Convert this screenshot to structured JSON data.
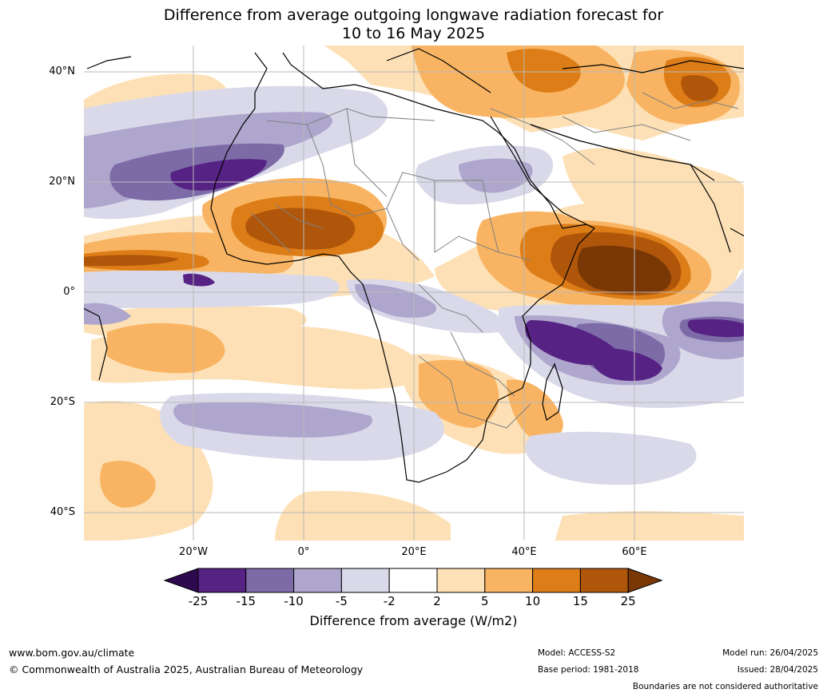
{
  "title": {
    "line1": "Difference from average outgoing longwave radiation forecast for",
    "line2": "10 to 16 May 2025"
  },
  "axes": {
    "lat_labels": [
      "40°N",
      "20°N",
      "0°",
      "20°S",
      "40°S"
    ],
    "lon_labels": [
      "20°W",
      "0°",
      "20°E",
      "40°E",
      "60°E"
    ],
    "lat_values": [
      40,
      20,
      0,
      -20,
      -40
    ],
    "lon_values": [
      -20,
      0,
      20,
      40,
      60
    ],
    "extent": {
      "lon_min": -40,
      "lon_max": 80,
      "lat_min": -45,
      "lat_max": 45
    }
  },
  "colorbar": {
    "labels": [
      "-25",
      "-15",
      "-10",
      "-5",
      "-2",
      "2",
      "5",
      "10",
      "15",
      "25"
    ],
    "colors": [
      "#2d0a4e",
      "#562284",
      "#7d6ba8",
      "#aea6cd",
      "#d9d9ea",
      "#ffffff",
      "#fde0b5",
      "#f8b462",
      "#dd7d17",
      "#b0560b",
      "#7a3706"
    ],
    "title": "Difference from average (W/m2)"
  },
  "colors": {
    "ocean": "#ffffff",
    "grid": "#b9b9b9",
    "coast": "#000000",
    "borders": "#808080"
  },
  "footer": {
    "website": "www.bom.gov.au/climate",
    "copyright": "© Commonwealth of Australia 2025, Australian Bureau of Meteorology",
    "model": "Model: ACCESS-S2",
    "base_period": "Base period: 1981-2018",
    "model_run": "Model run: 26/04/2025",
    "issued": "Issued: 28/04/2025",
    "disclaimer": "Boundaries are not considered authoritative"
  }
}
